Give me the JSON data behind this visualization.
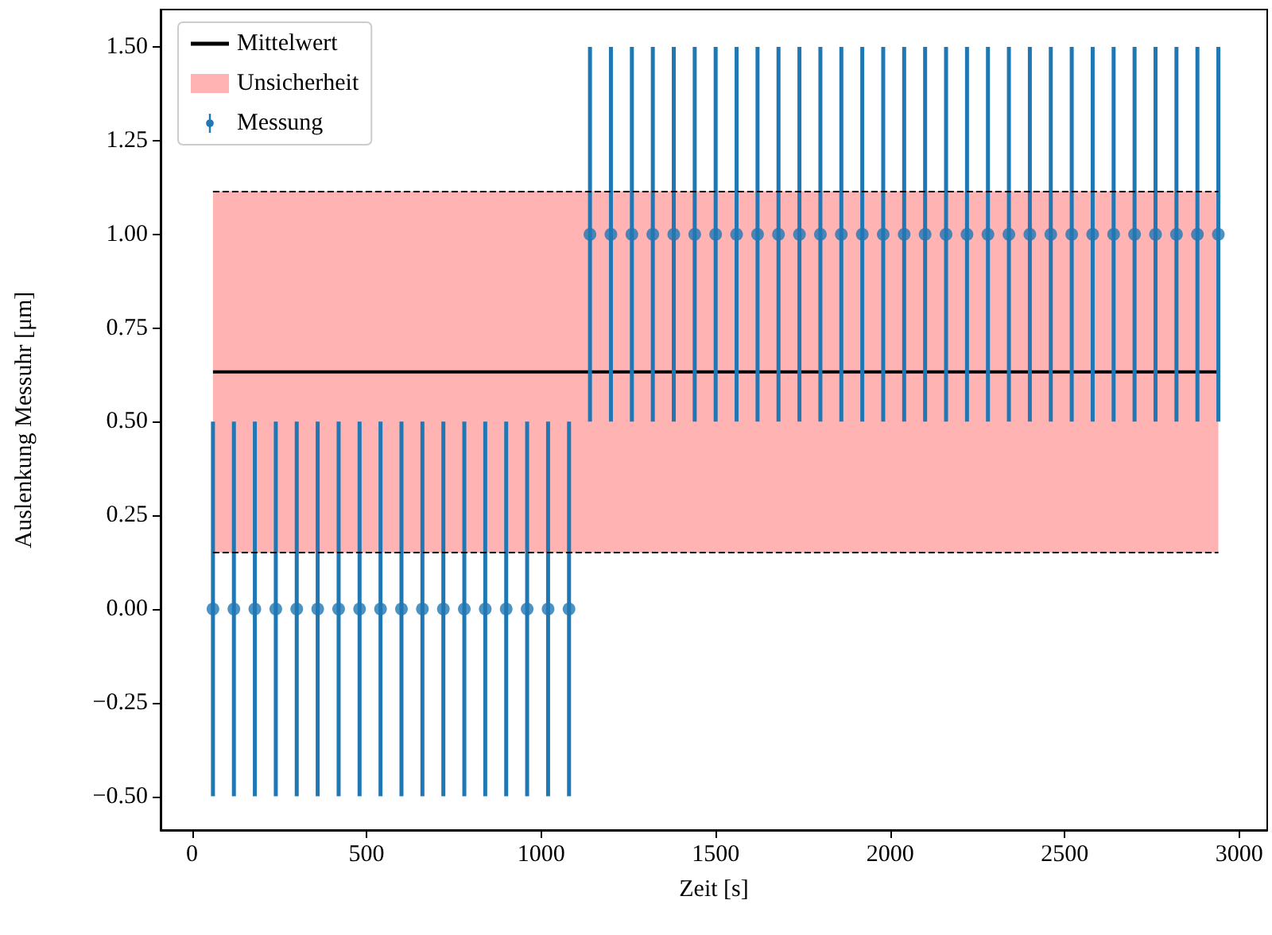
{
  "chart_data": {
    "type": "scatter",
    "xlabel": "Zeit [s]",
    "ylabel": "Auslenkung Messuhr [μm]",
    "xlim": [
      -90,
      3080
    ],
    "xticks": [
      0,
      500,
      1000,
      1500,
      2000,
      2500,
      3000
    ],
    "ylim": [
      -0.59,
      1.6
    ],
    "yticks": [
      {
        "value": -0.5,
        "label": "−0.50"
      },
      {
        "value": -0.25,
        "label": "−0.25"
      },
      {
        "value": 0,
        "label": "0.00"
      },
      {
        "value": 0.25,
        "label": "0.25"
      },
      {
        "value": 0.5,
        "label": "0.50"
      },
      {
        "value": 0.75,
        "label": "0.75"
      },
      {
        "value": 1,
        "label": "1.00"
      },
      {
        "value": 1.25,
        "label": "1.25"
      },
      {
        "value": 1.5,
        "label": "1.50"
      }
    ],
    "grid": false,
    "legend": "top left",
    "marker": "circle",
    "bands": [
      {
        "axis": "y",
        "from": 0.15,
        "to": 1.115,
        "label": "Unsicherheit",
        "color": "#ffb3b3"
      }
    ],
    "ref_lines": [
      {
        "axis": "y",
        "value": 0.15,
        "color": "#000000",
        "line_style": "dashed"
      },
      {
        "axis": "y",
        "value": 1.115,
        "color": "#000000",
        "line_style": "dashed"
      }
    ],
    "series": [
      {
        "name": "Mittelwert",
        "type": "line",
        "color": "#000000",
        "line_style": "solid",
        "marker": "none",
        "x": [
          60,
          2940
        ],
        "values": [
          0.633,
          0.633
        ]
      },
      {
        "name": "Messung",
        "color": "#1f77b4",
        "x": [
          60,
          120,
          180,
          240,
          300,
          360,
          420,
          480,
          540,
          600,
          660,
          720,
          780,
          840,
          900,
          960,
          1020,
          1080,
          1140,
          1200,
          1260,
          1320,
          1380,
          1440,
          1500,
          1560,
          1620,
          1680,
          1740,
          1800,
          1860,
          1920,
          1980,
          2040,
          2100,
          2160,
          2220,
          2280,
          2340,
          2400,
          2460,
          2520,
          2580,
          2640,
          2700,
          2760,
          2820,
          2880,
          2940
        ],
        "values": [
          0,
          0,
          0,
          0,
          0,
          0,
          0,
          0,
          0,
          0,
          0,
          0,
          0,
          0,
          0,
          0,
          0,
          0,
          1,
          1,
          1,
          1,
          1,
          1,
          1,
          1,
          1,
          1,
          1,
          1,
          1,
          1,
          1,
          1,
          1,
          1,
          1,
          1,
          1,
          1,
          1,
          1,
          1,
          1,
          1,
          1,
          1,
          1,
          1
        ],
        "errors": [
          0.5,
          0.5,
          0.5,
          0.5,
          0.5,
          0.5,
          0.5,
          0.5,
          0.5,
          0.5,
          0.5,
          0.5,
          0.5,
          0.5,
          0.5,
          0.5,
          0.5,
          0.5,
          0.5,
          0.5,
          0.5,
          0.5,
          0.5,
          0.5,
          0.5,
          0.5,
          0.5,
          0.5,
          0.5,
          0.5,
          0.5,
          0.5,
          0.5,
          0.5,
          0.5,
          0.5,
          0.5,
          0.5,
          0.5,
          0.5,
          0.5,
          0.5,
          0.5,
          0.5,
          0.5,
          0.5,
          0.5,
          0.5,
          0.5
        ]
      }
    ]
  }
}
